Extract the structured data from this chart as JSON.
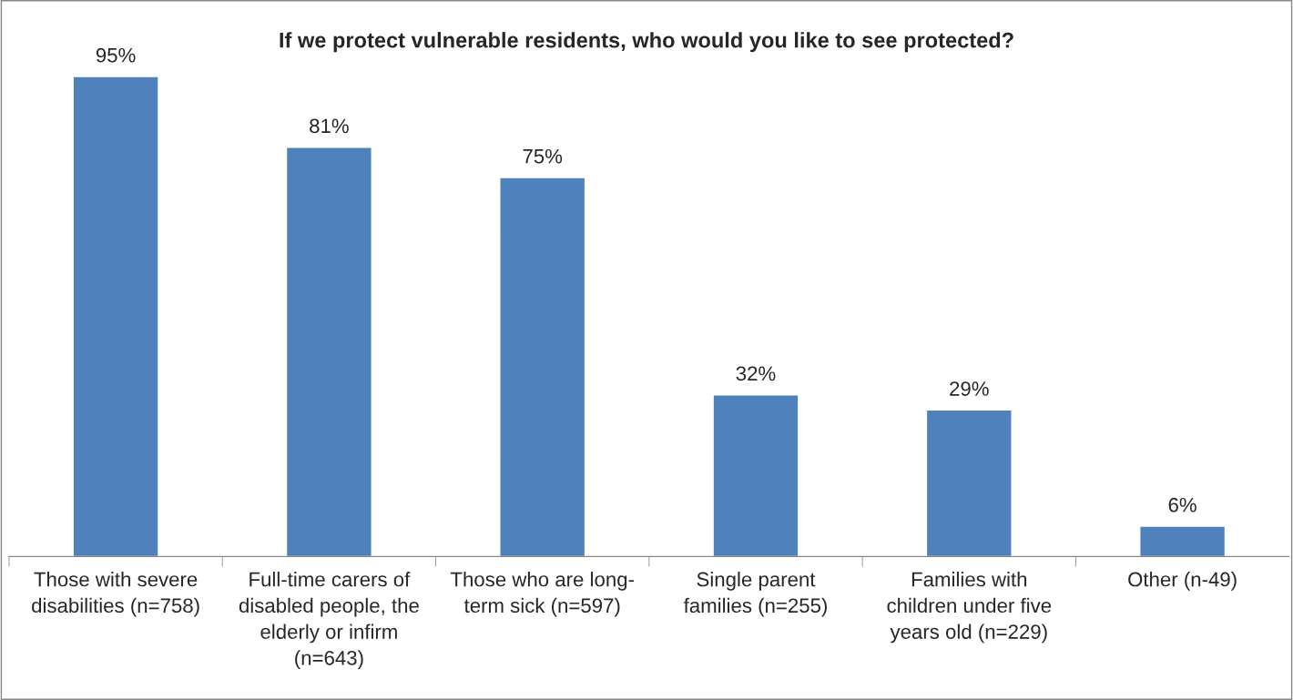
{
  "chart_data": {
    "type": "bar",
    "title": "If we protect vulnerable residents, who would you like to see protected?",
    "categories": [
      "Those with severe\ndisabilities (n=758)",
      "Full-time carers of\ndisabled people, the\nelderly or infirm\n(n=643)",
      "Those who are long-\nterm sick (n=597)",
      "Single parent\nfamilies (n=255)",
      "Families with\nchildren under five\nyears old (n=229)",
      "Other (n-49)"
    ],
    "values": [
      95,
      81,
      75,
      32,
      29,
      6
    ],
    "value_labels": [
      "95%",
      "81%",
      "75%",
      "32%",
      "29%",
      "6%"
    ],
    "color": "#4f81bd",
    "tick_labels": "x",
    "grid": false
  }
}
